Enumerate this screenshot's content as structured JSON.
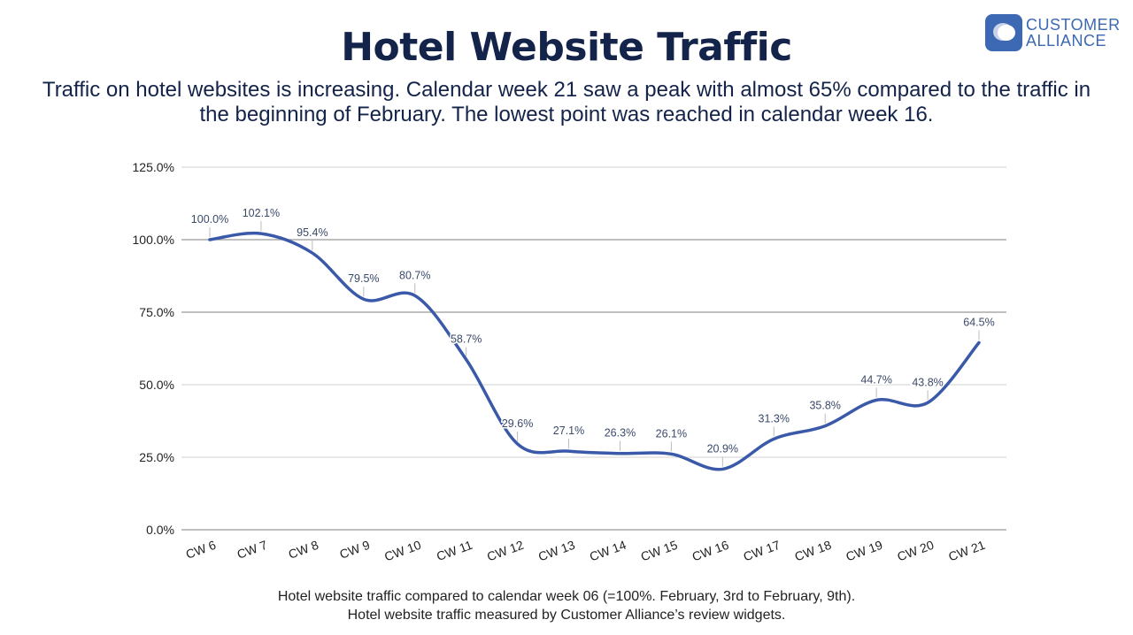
{
  "title": "Hotel Website Traffic",
  "subtitle": "Traffic on hotel websites is increasing. Calendar week 21 saw a peak with almost 65% compared to the traffic in the beginning of February. The lowest point was reached in calendar week 16.",
  "logo": {
    "line1": "CUSTOMER",
    "line2": "ALLIANCE",
    "color": "#3d68b3"
  },
  "footer": {
    "line1": "Hotel website traffic compared to calendar week 06 (=100%. February, 3rd to February, 9th).",
    "line2": "Hotel website traffic measured by Customer Alliance’s review widgets."
  },
  "chart_data": {
    "type": "line",
    "categories": [
      "CW 6",
      "CW 7",
      "CW 8",
      "CW 9",
      "CW 10",
      "CW 11",
      "CW 12",
      "CW 13",
      "CW 14",
      "CW 15",
      "CW 16",
      "CW 17",
      "CW 18",
      "CW 19",
      "CW 20",
      "CW 21"
    ],
    "series": [
      {
        "values": [
          100.0,
          102.1,
          95.4,
          79.5,
          80.7,
          58.7,
          29.6,
          27.1,
          26.3,
          26.1,
          20.9,
          31.3,
          35.8,
          44.7,
          43.8,
          64.5
        ],
        "color": "#3a59a8"
      }
    ],
    "data_labels": [
      "100.0%",
      "102.1%",
      "95.4%",
      "79.5%",
      "80.7%",
      "58.7%",
      "29.6%",
      "27.1%",
      "26.3%",
      "26.1%",
      "20.9%",
      "31.3%",
      "35.8%",
      "44.7%",
      "43.8%",
      "64.5%"
    ],
    "yticks": [
      "0.0%",
      "25.0%",
      "50.0%",
      "75.0%",
      "100.0%",
      "125.0%"
    ],
    "ylim": [
      0,
      125
    ],
    "grid": true,
    "smooth": true
  }
}
